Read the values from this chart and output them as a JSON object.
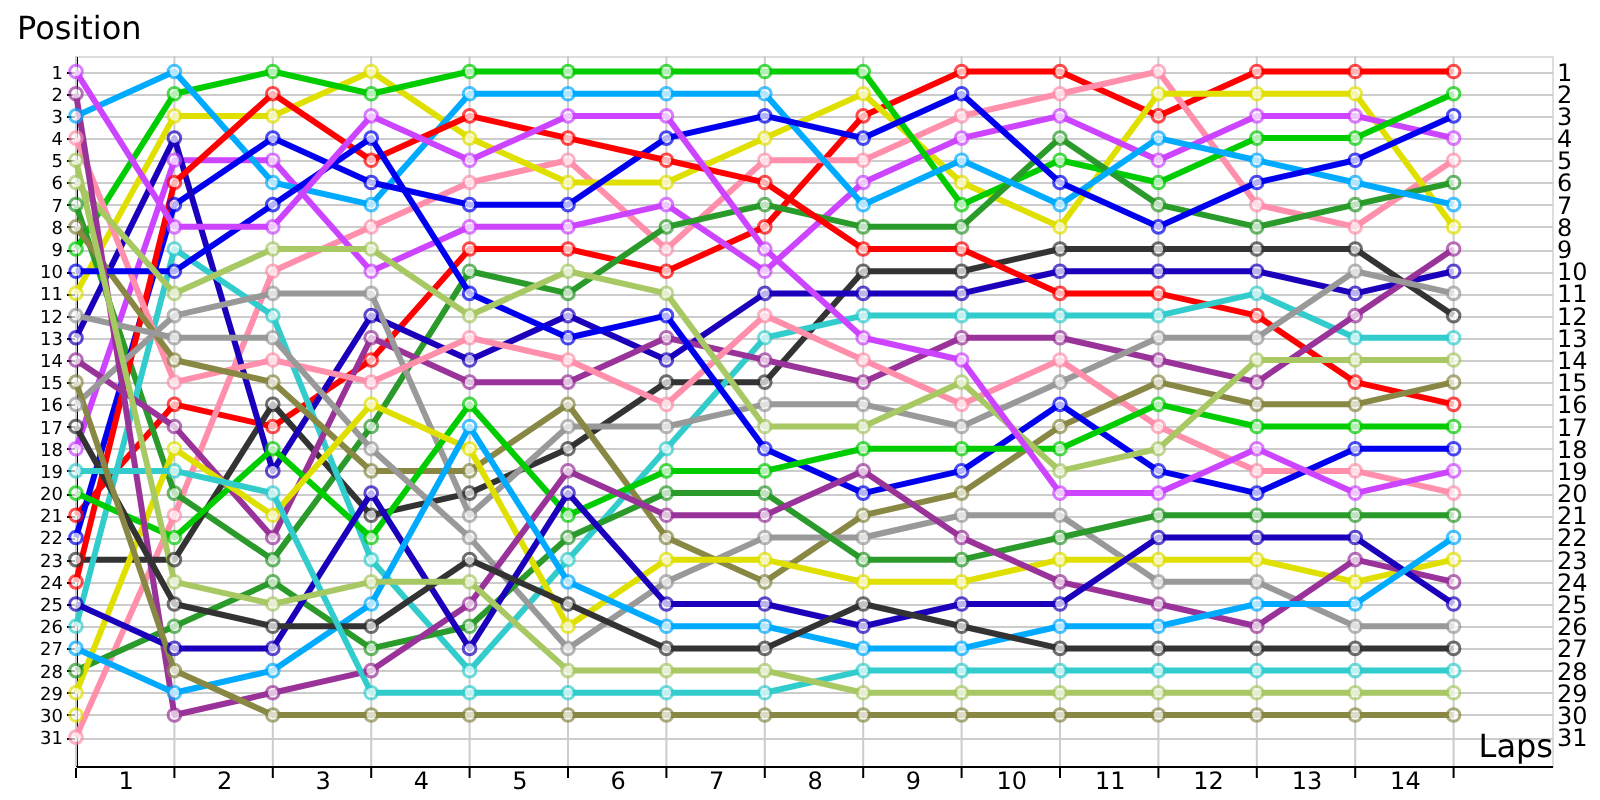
{
  "chart_data": {
    "type": "line",
    "xlabel": "Laps",
    "ylabel": "Position",
    "x": [
      0,
      1,
      2,
      3,
      4,
      5,
      6,
      7,
      8,
      9,
      10,
      11,
      12,
      13,
      14
    ],
    "xlim": [
      0,
      15
    ],
    "xticks": [
      {
        "value": 0,
        "label": null
      },
      {
        "value": 0.5,
        "label": "1"
      },
      {
        "value": 1,
        "label": null
      },
      {
        "value": 1.5,
        "label": "2"
      },
      {
        "value": 2,
        "label": null
      },
      {
        "value": 2.5,
        "label": "3"
      },
      {
        "value": 3,
        "label": null
      },
      {
        "value": 3.5,
        "label": "4"
      },
      {
        "value": 4,
        "label": null
      },
      {
        "value": 4.5,
        "label": "5"
      },
      {
        "value": 5,
        "label": null
      },
      {
        "value": 5.5,
        "label": "6"
      },
      {
        "value": 6,
        "label": null
      },
      {
        "value": 6.5,
        "label": "7"
      },
      {
        "value": 7,
        "label": null
      },
      {
        "value": 7.5,
        "label": "8"
      },
      {
        "value": 8,
        "label": null
      },
      {
        "value": 8.5,
        "label": "9"
      },
      {
        "value": 9,
        "label": null
      },
      {
        "value": 9.5,
        "label": "10"
      },
      {
        "value": 10,
        "label": null
      },
      {
        "value": 10.5,
        "label": "11"
      },
      {
        "value": 11,
        "label": null
      },
      {
        "value": 11.5,
        "label": "12"
      },
      {
        "value": 12,
        "label": null
      },
      {
        "value": 12.5,
        "label": "13"
      },
      {
        "value": 13,
        "label": null
      },
      {
        "value": 13.5,
        "label": "14"
      },
      {
        "value": 14,
        "label": null
      }
    ],
    "ylim": [
      32.3,
      0.3
    ],
    "yticks": [
      1,
      2,
      3,
      4,
      5,
      6,
      7,
      8,
      9,
      10,
      11,
      12,
      13,
      14,
      15,
      16,
      17,
      18,
      19,
      20,
      21,
      22,
      23,
      24,
      25,
      26,
      27,
      28,
      29,
      30,
      31
    ],
    "y2lim": [
      32.3,
      0.3
    ],
    "y2ticks": [
      1,
      2,
      3,
      4,
      5,
      6,
      7,
      8,
      9,
      10,
      11,
      12,
      13,
      14,
      15,
      16,
      17,
      18,
      19,
      20,
      21,
      22,
      23,
      24,
      25,
      26,
      27,
      28,
      29,
      30,
      31
    ],
    "grid": true,
    "legend": false,
    "marker": "circle",
    "line_style": "solid",
    "series": [
      {
        "color": "#ff0000",
        "values": [
          21,
          16,
          17,
          14,
          9,
          9,
          10,
          8,
          3,
          1,
          1,
          3,
          1,
          1,
          1
        ]
      },
      {
        "color": "#ff8fab",
        "values": [
          31,
          21,
          10,
          8,
          6,
          5,
          9,
          5,
          5,
          3,
          2,
          1,
          7,
          8,
          5
        ]
      },
      {
        "color": "#e0e000",
        "values": [
          11,
          3,
          3,
          1,
          4,
          6,
          6,
          4,
          2,
          6,
          8,
          2,
          2,
          2,
          8
        ]
      },
      {
        "color": "#cc44ff",
        "values": [
          18,
          5,
          5,
          10,
          8,
          8,
          7,
          10,
          6,
          4,
          3,
          5,
          3,
          3,
          4
        ]
      },
      {
        "color": "#00cc00",
        "values": [
          9,
          2,
          1,
          2,
          1,
          1,
          1,
          1,
          1,
          7,
          5,
          6,
          4,
          4,
          2
        ]
      },
      {
        "color": "#2a9a2a",
        "values": [
          7,
          20,
          23,
          17,
          10,
          11,
          8,
          7,
          8,
          8,
          4,
          7,
          8,
          7,
          6
        ]
      },
      {
        "color": "#00aaff",
        "values": [
          3,
          1,
          6,
          7,
          2,
          2,
          2,
          2,
          7,
          5,
          7,
          4,
          5,
          6,
          7
        ]
      },
      {
        "color": "#0000ee",
        "values": [
          22,
          7,
          4,
          6,
          7,
          7,
          4,
          3,
          4,
          2,
          6,
          8,
          6,
          5,
          3
        ]
      },
      {
        "color": "#333333",
        "values": [
          23,
          23,
          16,
          21,
          20,
          18,
          15,
          15,
          10,
          10,
          9,
          9,
          9,
          9,
          12
        ]
      },
      {
        "color": "#1a00bb",
        "values": [
          13,
          4,
          19,
          12,
          14,
          12,
          14,
          11,
          11,
          11,
          10,
          10,
          10,
          11,
          10
        ]
      },
      {
        "color": "#ff0000",
        "values": [
          24,
          6,
          2,
          5,
          3,
          4,
          5,
          6,
          9,
          9,
          11,
          11,
          12,
          15,
          16
        ]
      },
      {
        "color": "#33cccc",
        "values": [
          26,
          9,
          12,
          23,
          28,
          23,
          18,
          13,
          12,
          12,
          12,
          12,
          11,
          13,
          13
        ]
      },
      {
        "color": "#993399",
        "values": [
          14,
          17,
          22,
          13,
          15,
          15,
          13,
          14,
          15,
          13,
          13,
          14,
          15,
          12,
          9
        ]
      },
      {
        "color": "#999999",
        "values": [
          16,
          12,
          11,
          11,
          21,
          17,
          17,
          16,
          16,
          17,
          15,
          13,
          13,
          10,
          11
        ]
      },
      {
        "color": "#ff8fab",
        "values": [
          4,
          15,
          14,
          15,
          13,
          14,
          16,
          12,
          14,
          16,
          14,
          17,
          19,
          19,
          20
        ]
      },
      {
        "color": "#888844",
        "values": [
          8,
          14,
          15,
          19,
          19,
          16,
          22,
          24,
          21,
          20,
          17,
          15,
          16,
          16,
          15
        ]
      },
      {
        "color": "#0000ee",
        "values": [
          10,
          10,
          7,
          4,
          11,
          13,
          12,
          18,
          20,
          19,
          16,
          19,
          20,
          18,
          18
        ]
      },
      {
        "color": "#00cc00",
        "values": [
          20,
          22,
          18,
          22,
          16,
          21,
          19,
          19,
          18,
          18,
          18,
          16,
          17,
          17,
          17
        ]
      },
      {
        "color": "#a8c864",
        "values": [
          6,
          11,
          9,
          9,
          12,
          10,
          11,
          17,
          17,
          15,
          19,
          18,
          14,
          14,
          14
        ]
      },
      {
        "color": "#cc44ff",
        "values": [
          1,
          8,
          8,
          3,
          5,
          3,
          3,
          9,
          13,
          14,
          20,
          20,
          18,
          20,
          19
        ]
      },
      {
        "color": "#999999",
        "values": [
          12,
          13,
          13,
          18,
          22,
          27,
          24,
          22,
          22,
          21,
          21,
          24,
          24,
          26,
          26
        ]
      },
      {
        "color": "#2a9a2a",
        "values": [
          28,
          26,
          24,
          27,
          26,
          22,
          20,
          20,
          23,
          23,
          22,
          21,
          21,
          21,
          21
        ]
      },
      {
        "color": "#e0e000",
        "values": [
          29,
          18,
          21,
          16,
          18,
          26,
          23,
          23,
          24,
          24,
          23,
          23,
          23,
          24,
          23
        ]
      },
      {
        "color": "#993399",
        "values": [
          2,
          30,
          29,
          28,
          25,
          19,
          21,
          21,
          19,
          22,
          24,
          25,
          26,
          23,
          24
        ]
      },
      {
        "color": "#1a00bb",
        "values": [
          25,
          27,
          27,
          20,
          27,
          20,
          25,
          25,
          26,
          25,
          25,
          22,
          22,
          22,
          25
        ]
      },
      {
        "color": "#00aaff",
        "values": [
          27,
          29,
          28,
          25,
          17,
          24,
          26,
          26,
          27,
          27,
          26,
          26,
          25,
          25,
          22
        ]
      },
      {
        "color": "#333333",
        "values": [
          17,
          25,
          26,
          26,
          23,
          25,
          27,
          27,
          25,
          26,
          27,
          27,
          27,
          27,
          27
        ]
      },
      {
        "color": "#33cccc",
        "values": [
          19,
          19,
          20,
          29,
          29,
          29,
          29,
          29,
          28,
          28,
          28,
          28,
          28,
          28,
          28
        ]
      },
      {
        "color": "#a8c864",
        "values": [
          5,
          24,
          25,
          24,
          24,
          28,
          28,
          28,
          29,
          29,
          29,
          29,
          29,
          29,
          29
        ]
      },
      {
        "color": "#888844",
        "values": [
          15,
          28,
          30,
          30,
          30,
          30,
          30,
          30,
          30,
          30,
          30,
          30,
          30,
          30,
          30
        ]
      },
      {
        "color": "#e0e000",
        "values": [
          30,
          null,
          null,
          null,
          null,
          null,
          null,
          null,
          null,
          null,
          null,
          null,
          null,
          null,
          null
        ]
      }
    ]
  }
}
